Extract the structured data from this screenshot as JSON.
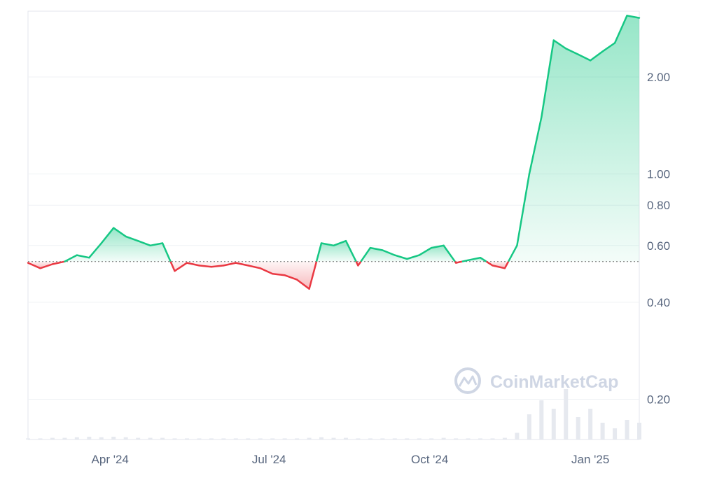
{
  "watermark": {
    "text": "CoinMarketCap",
    "icon": "coinmarketcap-logo-icon"
  },
  "colors": {
    "up": "#16c784",
    "down": "#ea3943",
    "up_fill": "#16c784",
    "down_fill": "#ea3943",
    "grid": "#eff2f5",
    "baseline": "#6b6b6b",
    "volume": "#e6e9ef"
  },
  "chart_data": {
    "type": "area",
    "title": "",
    "xlabel": "",
    "ylabel": "",
    "y_scale": "log",
    "ylim": [
      0.15,
      3.2
    ],
    "baseline": 0.535,
    "grid": true,
    "x_ticks": [
      "Apr '24",
      "Jul '24",
      "Oct '24",
      "Jan '25"
    ],
    "y_ticks": [
      {
        "value": 2.0,
        "label": "2.00"
      },
      {
        "value": 1.0,
        "label": "1.00"
      },
      {
        "value": 0.8,
        "label": "0.80"
      },
      {
        "value": 0.6,
        "label": "0.60"
      },
      {
        "value": 0.4,
        "label": "0.40"
      },
      {
        "value": 0.2,
        "label": "0.20"
      }
    ],
    "x": [
      "2024-02-14",
      "2024-02-21",
      "2024-02-28",
      "2024-03-06",
      "2024-03-13",
      "2024-03-20",
      "2024-03-27",
      "2024-04-03",
      "2024-04-10",
      "2024-04-17",
      "2024-04-24",
      "2024-05-01",
      "2024-05-08",
      "2024-05-15",
      "2024-05-22",
      "2024-05-29",
      "2024-06-05",
      "2024-06-12",
      "2024-06-19",
      "2024-06-26",
      "2024-07-03",
      "2024-07-10",
      "2024-07-17",
      "2024-07-24",
      "2024-07-31",
      "2024-08-07",
      "2024-08-14",
      "2024-08-21",
      "2024-08-28",
      "2024-09-04",
      "2024-09-11",
      "2024-09-18",
      "2024-09-25",
      "2024-10-02",
      "2024-10-09",
      "2024-10-16",
      "2024-10-23",
      "2024-10-30",
      "2024-11-06",
      "2024-11-13",
      "2024-11-20",
      "2024-11-27",
      "2024-12-04",
      "2024-12-11",
      "2024-12-18",
      "2024-12-25",
      "2025-01-01",
      "2025-01-08",
      "2025-01-15",
      "2025-01-22",
      "2025-01-29"
    ],
    "series": [
      {
        "values": [
          0.53,
          0.51,
          0.525,
          0.535,
          0.56,
          0.55,
          0.61,
          0.68,
          0.64,
          0.62,
          0.6,
          0.61,
          0.5,
          0.53,
          0.52,
          0.515,
          0.52,
          0.53,
          0.52,
          0.51,
          0.49,
          0.485,
          0.47,
          0.44,
          0.61,
          0.6,
          0.62,
          0.52,
          0.59,
          0.58,
          0.56,
          0.545,
          0.56,
          0.59,
          0.6,
          0.53,
          0.54,
          0.55,
          0.52,
          0.51,
          0.6,
          1.0,
          1.5,
          2.6,
          2.45,
          2.35,
          2.25,
          2.4,
          2.55,
          3.1,
          3.05
        ]
      }
    ],
    "volume": [
      0.02,
      0.02,
      0.03,
      0.03,
      0.04,
      0.05,
      0.04,
      0.05,
      0.04,
      0.03,
      0.03,
      0.03,
      0.02,
      0.02,
      0.02,
      0.02,
      0.02,
      0.02,
      0.02,
      0.02,
      0.02,
      0.02,
      0.02,
      0.03,
      0.04,
      0.03,
      0.03,
      0.02,
      0.02,
      0.02,
      0.02,
      0.02,
      0.02,
      0.02,
      0.03,
      0.02,
      0.02,
      0.02,
      0.02,
      0.03,
      0.12,
      0.45,
      0.7,
      0.55,
      0.9,
      0.4,
      0.55,
      0.3,
      0.2,
      0.35,
      0.3
    ]
  }
}
